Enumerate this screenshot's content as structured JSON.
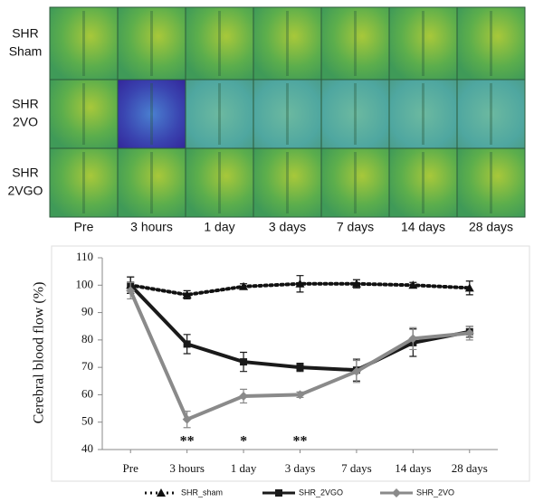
{
  "image_grid": {
    "rows": [
      [
        "SHR",
        "Sham"
      ],
      [
        "SHR",
        "2VO"
      ],
      [
        "SHR",
        "2VGO"
      ]
    ],
    "columns": [
      "Pre",
      "3 hours",
      "1 day",
      "3 days",
      "7 days",
      "14 days",
      "28 days"
    ]
  },
  "chart_data": {
    "type": "line",
    "ylabel": "Cerebral blood flow (%)",
    "categories": [
      "Pre",
      "3 hours",
      "1 day",
      "3 days",
      "7 days",
      "14 days",
      "28 days"
    ],
    "ylim": [
      40,
      110
    ],
    "yticks": [
      40,
      50,
      60,
      70,
      80,
      90,
      100,
      110
    ],
    "grid": false,
    "series": [
      {
        "name": "SHR_sham",
        "color": "#111111",
        "line_style": "dotted",
        "marker": "triangle",
        "values": [
          100,
          96.5,
          99.5,
          100.5,
          100.5,
          100,
          99
        ],
        "errors": [
          3,
          1.5,
          1,
          3,
          1.5,
          1,
          2.5
        ]
      },
      {
        "name": "SHR_2VGO",
        "color": "#1a1a1a",
        "line_style": "solid",
        "marker": "square",
        "values": [
          100,
          78.5,
          72,
          70,
          69,
          79,
          83
        ],
        "errors": [
          3,
          3.5,
          3.5,
          1.5,
          4,
          5,
          2
        ]
      },
      {
        "name": "SHR_2VO",
        "color": "#8a8a8a",
        "line_style": "solid",
        "marker": "diamond",
        "values": [
          98,
          51,
          59.5,
          60,
          68.5,
          80.5,
          82.5
        ],
        "errors": [
          3,
          3,
          2.5,
          1,
          4,
          4,
          2.5
        ]
      }
    ],
    "significance": [
      null,
      "**",
      "*",
      "**",
      null,
      null,
      null
    ]
  }
}
